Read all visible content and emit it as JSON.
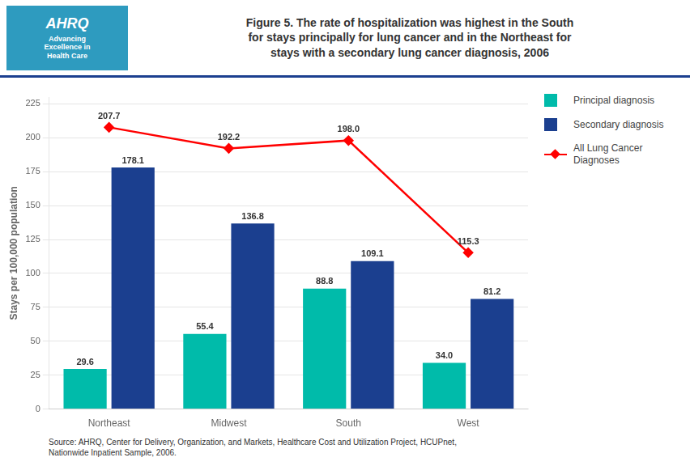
{
  "chart_data": {
    "type": "bar",
    "title": "Figure 5. The rate of hospitalization was highest in the South\nfor stays principally for lung cancer and in the Northeast for\nstays with a secondary lung cancer diagnosis, 2006",
    "categories": [
      "Northeast",
      "Midwest",
      "South",
      "West"
    ],
    "series": [
      {
        "name": "Principal diagnosis",
        "color": "#00BBAA",
        "values": [
          29.6,
          55.4,
          88.8,
          34.0
        ],
        "value_labels": [
          "29.6",
          "55.4",
          "88.8",
          "34.0"
        ]
      },
      {
        "name": "Secondary diagnosis",
        "color": "#1B3F8F",
        "values": [
          178.1,
          136.8,
          109.1,
          81.2
        ]
      },
      {
        "name": "All Lung Cancer\nDiagnoses",
        "type": "line",
        "color": "#FF0000",
        "marker": "diamond",
        "values": [
          207.7,
          192.2,
          198.0,
          115.3
        ],
        "value_labels": [
          "207.7",
          "192.2",
          "198.0",
          "115.3"
        ]
      }
    ],
    "ylabel": "Stays per 100,000 population",
    "ylim": [
      0,
      230
    ],
    "yticks": [
      0,
      25,
      50,
      75,
      100,
      125,
      150,
      175,
      200,
      225
    ],
    "grid": true,
    "legend": "right",
    "data_labels": true,
    "annotations": [
      "Source: AHRQ, Center for Delivery, Organization, and Markets, Healthcare Cost and Utilization Project, HCUPnet,\nNationwide Inpatient Sample, 2006.",
      "AHRQ",
      "Advancing\nExcellence in\nHealth Care"
    ]
  }
}
